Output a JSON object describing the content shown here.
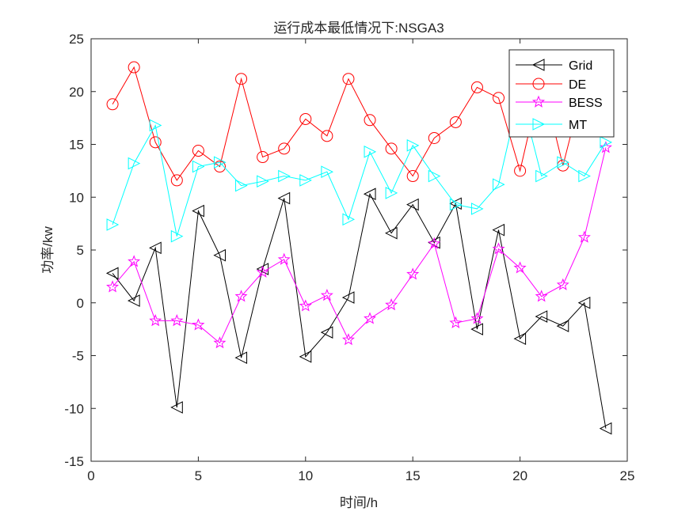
{
  "chart_data": {
    "type": "line",
    "title": "运行成本最低情况下:NSGA3",
    "xlabel": "时间/h",
    "ylabel": "功率/kw",
    "xlim": [
      0,
      25
    ],
    "ylim": [
      -15,
      25
    ],
    "xticks": [
      0,
      5,
      10,
      15,
      20,
      25
    ],
    "yticks": [
      -15,
      -10,
      -5,
      0,
      5,
      10,
      15,
      20,
      25
    ],
    "grid": false,
    "legend_position": "top-right",
    "x": [
      1,
      2,
      3,
      4,
      5,
      6,
      7,
      8,
      9,
      10,
      11,
      12,
      13,
      14,
      15,
      16,
      17,
      18,
      19,
      20,
      21,
      22,
      23,
      24
    ],
    "series": [
      {
        "name": "Grid",
        "color": "#000000",
        "marker": "triangle-left",
        "values": [
          2.8,
          0.2,
          5.2,
          -9.9,
          8.7,
          4.5,
          -5.2,
          3.2,
          9.9,
          -5.1,
          -2.8,
          0.5,
          10.3,
          6.6,
          9.3,
          5.7,
          9.4,
          -2.5,
          6.9,
          -3.4,
          -1.3,
          -2.2,
          0.0,
          -11.9
        ]
      },
      {
        "name": "DE",
        "color": "#ff0000",
        "marker": "circle",
        "values": [
          18.8,
          22.3,
          15.2,
          11.6,
          14.4,
          12.9,
          21.2,
          13.8,
          14.6,
          17.4,
          15.8,
          21.2,
          17.3,
          14.6,
          12.0,
          15.6,
          17.1,
          20.4,
          19.4,
          12.5,
          21.3,
          13.0,
          20.9,
          20.0
        ]
      },
      {
        "name": "BESS",
        "color": "#ff00ff",
        "marker": "star",
        "values": [
          1.5,
          3.9,
          -1.7,
          -1.7,
          -2.1,
          -3.8,
          0.6,
          2.9,
          4.1,
          -0.3,
          0.7,
          -3.5,
          -1.5,
          -0.2,
          2.7,
          5.6,
          -1.9,
          -1.5,
          5.1,
          3.3,
          0.6,
          1.7,
          6.2,
          14.7
        ]
      },
      {
        "name": "MT",
        "color": "#00ffff",
        "marker": "triangle-right",
        "values": [
          7.4,
          13.2,
          16.8,
          6.3,
          12.9,
          13.3,
          11.1,
          11.5,
          12.0,
          11.6,
          12.4,
          7.9,
          14.3,
          10.4,
          14.9,
          12.0,
          9.3,
          8.9,
          11.2,
          20.0,
          12.0,
          13.3,
          12.0,
          15.2
        ]
      }
    ]
  }
}
